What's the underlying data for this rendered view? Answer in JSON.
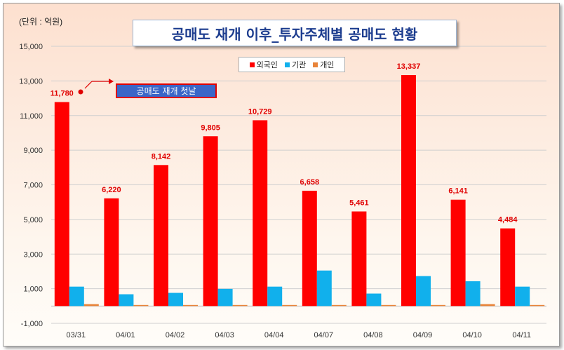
{
  "unit_label": "(단위 : 억원)",
  "annotation": "공매도 재개 첫날",
  "colors": {
    "foreign": "#ff0000",
    "institution": "#11b0ec",
    "individual": "#e8843a"
  },
  "chart_data": {
    "type": "bar",
    "title": "공매도 재개 이후_투자주체별 공매도 현황",
    "ylim": [
      -1000,
      15000
    ],
    "yticks": [
      -1000,
      1000,
      3000,
      5000,
      7000,
      9000,
      11000,
      13000,
      15000
    ],
    "ytick_labels": [
      "-1,000",
      "1,000",
      "3,000",
      "5,000",
      "7,000",
      "9,000",
      "11,000",
      "13,000",
      "15,000"
    ],
    "grid": true,
    "legend_position": "top-center",
    "categories": [
      "03/31",
      "04/01",
      "04/02",
      "04/03",
      "04/04",
      "04/07",
      "04/08",
      "04/09",
      "04/10",
      "04/11"
    ],
    "series": [
      {
        "name": "외국인",
        "values": [
          11780,
          6220,
          8142,
          9805,
          10729,
          6658,
          5461,
          13337,
          6141,
          4484
        ],
        "labels": [
          "11,780",
          "6,220",
          "8,142",
          "9,805",
          "10,729",
          "6,658",
          "5,461",
          "13,337",
          "6,141",
          "4,484"
        ]
      },
      {
        "name": "기관",
        "values": [
          1120,
          680,
          760,
          990,
          1120,
          2050,
          720,
          1730,
          1430,
          1120
        ]
      },
      {
        "name": "개인",
        "values": [
          110,
          40,
          50,
          50,
          50,
          40,
          40,
          40,
          110,
          50
        ]
      }
    ]
  }
}
